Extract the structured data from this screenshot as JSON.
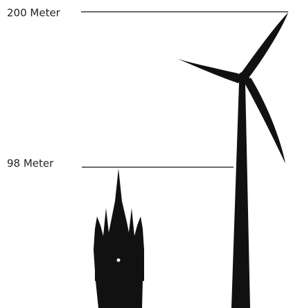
{
  "labels": [
    {
      "text": "200 Meter"
    },
    {
      "text": "98 Meter"
    }
  ]
}
